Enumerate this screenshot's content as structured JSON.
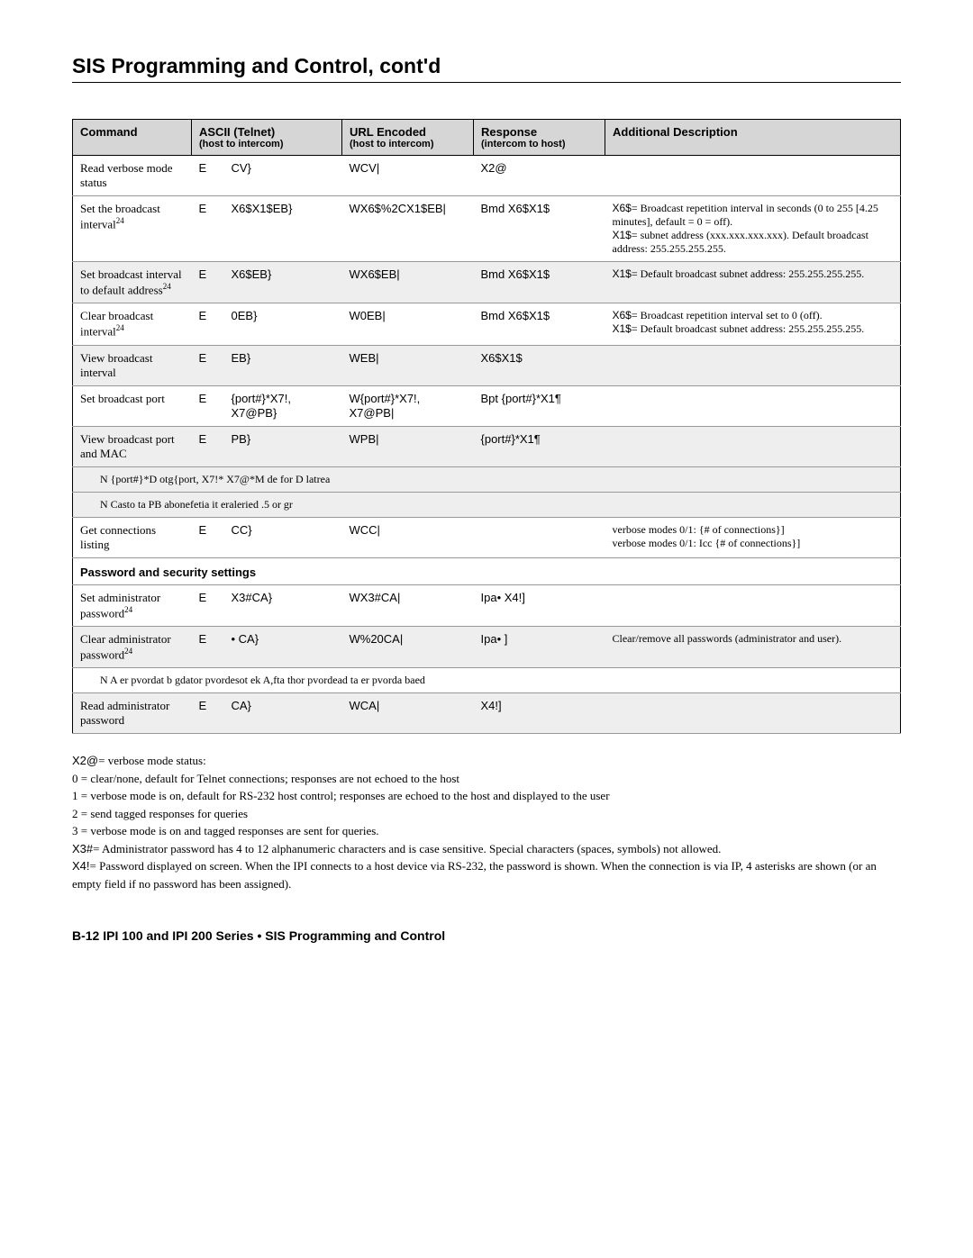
{
  "page_title": "SIS Programming and Control, cont'd",
  "table_headers": {
    "command": "Command",
    "ascii": "ASCII (Telnet)",
    "ascii_sub": "(host to intercom)",
    "url": "URL Encoded",
    "url_sub": "(host to intercom)",
    "response": "Response",
    "response_sub": "(intercom to host)",
    "desc": "Additional Description"
  },
  "rows": [
    {
      "command": "Read verbose mode status",
      "ascii": "CV}",
      "url": "WCV|",
      "response": "X2@",
      "desc": ""
    },
    {
      "command": "Set the broadcast interval²⁴",
      "ascii": "X6$X1$EB}",
      "url": "WX6$%2CX1$EB|",
      "response": "Bmd X6$X1$",
      "desc": "X6$= Broadcast repetition interval in seconds (0 to 255 [4.25 minutes], default = 0 = off).\nX1$= subnet address (xxx.xxx.xxx.xxx). Default broadcast address: 255.255.255.255."
    },
    {
      "command": "Set broadcast interval to default address²⁴",
      "ascii": "X6$EB}",
      "url": "WX6$EB|",
      "response": "Bmd X6$X1$",
      "desc": "X1$= Default broadcast subnet address: 255.255.255.255.",
      "alt": true
    },
    {
      "command": "Clear broadcast interval²⁴",
      "ascii": "0EB}",
      "url": "W0EB|",
      "response": "Bmd X6$X1$",
      "desc": "X6$= Broadcast repetition interval set to 0 (off).\nX1$= Default broadcast subnet address: 255.255.255.255."
    },
    {
      "command": "View broadcast interval",
      "ascii": "EB}",
      "url": "WEB|",
      "response": "X6$X1$",
      "desc": "",
      "alt": true
    },
    {
      "command": "Set broadcast port",
      "ascii": "{port#}*X7!, X7@PB}",
      "url": "W{port#}*X7!, X7@PB|",
      "response": "Bpt {port#}*X1¶",
      "desc": ""
    },
    {
      "command": "View broadcast port and MAC",
      "ascii": "PB}",
      "url": "WPB|",
      "response": "{port#}*X1¶",
      "desc": "",
      "alt": true
    }
  ],
  "note1": "N    {port#}*D otg{port,           X7!* X7@*M de for  D latrea",
  "note2": "N    Casto ta PB abonefetia it eraleried .5 or gr",
  "row_get": {
    "command": "Get connections listing",
    "ascii": "CC}",
    "url": "WCC|",
    "response": "",
    "desc": "verbose modes 0/1: {# of connections}]\nverbose modes 0/1: Icc {# of connections}]"
  },
  "section_pw": "Password and security settings",
  "pw_rows": [
    {
      "command": "Set administrator password²⁴",
      "ascii": "X3#CA}",
      "url": "WX3#CA|",
      "response": "Ipa• X4!]",
      "desc": ""
    },
    {
      "command": "Clear administrator password²⁴",
      "ascii": "• CA}",
      "url": "W%20CA|",
      "response": "Ipa• ]",
      "desc": "Clear/remove all passwords (administrator and user).",
      "alt": true
    }
  ],
  "note3": "N    A er pvordat b gdator pvordesot ek  A,fta thor pvordead ta er pvorda baed",
  "row_read_pw": {
    "command": "Read administrator password",
    "ascii": "CA}",
    "url": "WCA|",
    "response": "X4!]",
    "desc": "",
    "alt": true
  },
  "footer": {
    "x26": "X2@= verbose mode status:",
    "l0": "0 = clear/none, default for Telnet connections; responses are not echoed to the host",
    "l1": "1 = verbose mode is on, default for RS-232 host control; responses are echoed to the host and displayed to the user",
    "l2": "2 = send tagged responses for queries",
    "l3": "3 = verbose mode is on and tagged responses are sent for queries.",
    "x3": "X3#= Administrator password has  4 to 12 alphanumeric characters and is case sensitive.  Special characters (spaces, symbols) not allowed.",
    "x4": "X4!= Password displayed on screen. When the IPI connects to a host device via RS-232, the password is shown.  When the connection is via IP, 4 asterisks are shown (or an empty field if no password has been assigned)."
  },
  "page_footer": "B-12   IPI 100 and IPI 200 Series • SIS Programming and Control"
}
